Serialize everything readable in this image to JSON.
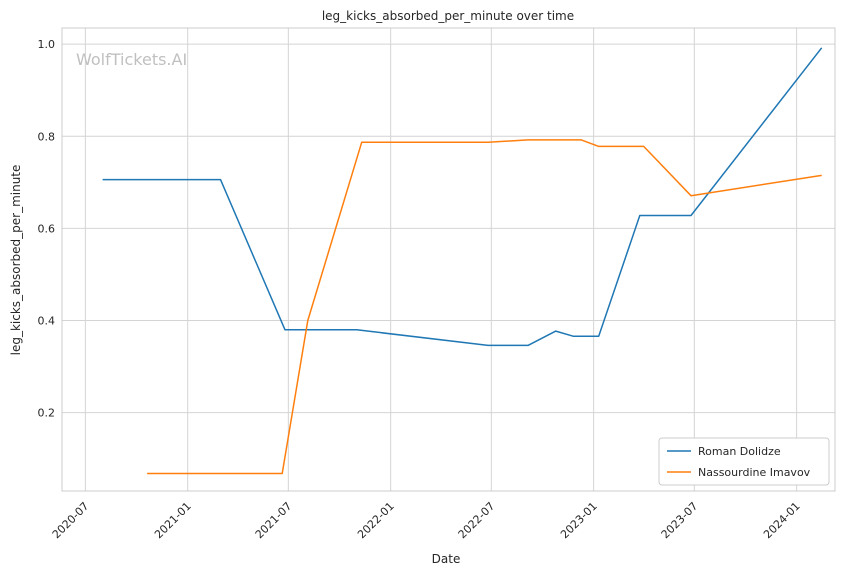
{
  "chart_data": {
    "type": "line",
    "title": "leg_kicks_absorbed_per_minute over time",
    "xlabel": "Date",
    "ylabel": "leg_kicks_absorbed_per_minute",
    "watermark": "WolfTickets.AI",
    "x_ticks": [
      "2020-07",
      "2021-01",
      "2021-07",
      "2022-01",
      "2022-07",
      "2023-01",
      "2023-07",
      "2024-01"
    ],
    "y_ticks": [
      "0.2",
      "0.4",
      "0.6",
      "0.8",
      "1.0"
    ],
    "xlim": [
      "2020-05-20",
      "2024-03-10"
    ],
    "ylim": [
      0.03,
      1.035
    ],
    "grid": true,
    "legend_position": "lower-right",
    "series": [
      {
        "name": "Roman Dolidze",
        "color": "#1f77b4",
        "points": [
          [
            "2020-08-01",
            0.706
          ],
          [
            "2021-03-01",
            0.706
          ],
          [
            "2021-06-25",
            0.38
          ],
          [
            "2021-11-01",
            0.38
          ],
          [
            "2022-06-25",
            0.346
          ],
          [
            "2022-09-05",
            0.346
          ],
          [
            "2022-10-25",
            0.377
          ],
          [
            "2022-11-25",
            0.366
          ],
          [
            "2023-01-10",
            0.366
          ],
          [
            "2023-03-25",
            0.628
          ],
          [
            "2023-06-25",
            0.628
          ],
          [
            "2024-02-15",
            0.992
          ]
        ]
      },
      {
        "name": "Nassourdine Imavov",
        "color": "#ff7f0e",
        "points": [
          [
            "2020-10-20",
            0.068
          ],
          [
            "2021-06-20",
            0.068
          ],
          [
            "2021-08-05",
            0.4
          ],
          [
            "2021-11-10",
            0.787
          ],
          [
            "2022-06-25",
            0.787
          ],
          [
            "2022-09-05",
            0.792
          ],
          [
            "2022-12-10",
            0.792
          ],
          [
            "2023-01-10",
            0.778
          ],
          [
            "2023-04-01",
            0.778
          ],
          [
            "2023-06-25",
            0.671
          ],
          [
            "2024-02-15",
            0.715
          ]
        ]
      }
    ]
  }
}
